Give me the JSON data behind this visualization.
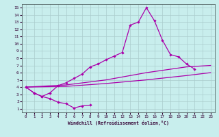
{
  "bg_color": "#c8eeed",
  "line_color": "#aa00aa",
  "grid_color": "#aacccc",
  "xlim": [
    -0.5,
    23.5
  ],
  "ylim": [
    0.5,
    15.5
  ],
  "xticks": [
    0,
    1,
    2,
    3,
    4,
    5,
    6,
    7,
    8,
    9,
    10,
    11,
    12,
    13,
    14,
    15,
    16,
    17,
    18,
    19,
    20,
    21,
    22,
    23
  ],
  "yticks": [
    1,
    2,
    3,
    4,
    5,
    6,
    7,
    8,
    9,
    10,
    11,
    12,
    13,
    14,
    15
  ],
  "xlabel": "Windchill (Refroidissement éolien,°C)",
  "line_dip_x": [
    0,
    1,
    2,
    3,
    4,
    5,
    6,
    7,
    8
  ],
  "line_dip_y": [
    4.0,
    3.2,
    2.7,
    2.4,
    1.9,
    1.7,
    1.1,
    1.4,
    1.5
  ],
  "line_peak_x": [
    0,
    1,
    2,
    3,
    4,
    5,
    6,
    7,
    8,
    9,
    10,
    11,
    12,
    13,
    14,
    15,
    16,
    17,
    18,
    19,
    20,
    21
  ],
  "line_peak_y": [
    4.0,
    3.2,
    2.7,
    3.2,
    4.2,
    4.6,
    5.2,
    5.8,
    6.8,
    7.2,
    7.8,
    8.3,
    8.8,
    12.6,
    13.0,
    15.0,
    13.2,
    10.5,
    8.5,
    8.2,
    7.2,
    6.5
  ],
  "line_top_x": [
    0,
    5,
    10,
    15,
    20,
    23
  ],
  "line_top_y": [
    4.0,
    4.3,
    5.0,
    6.0,
    6.8,
    7.0
  ],
  "line_bot_x": [
    0,
    5,
    10,
    15,
    20,
    23
  ],
  "line_bot_y": [
    4.0,
    4.1,
    4.5,
    5.0,
    5.6,
    6.0
  ]
}
